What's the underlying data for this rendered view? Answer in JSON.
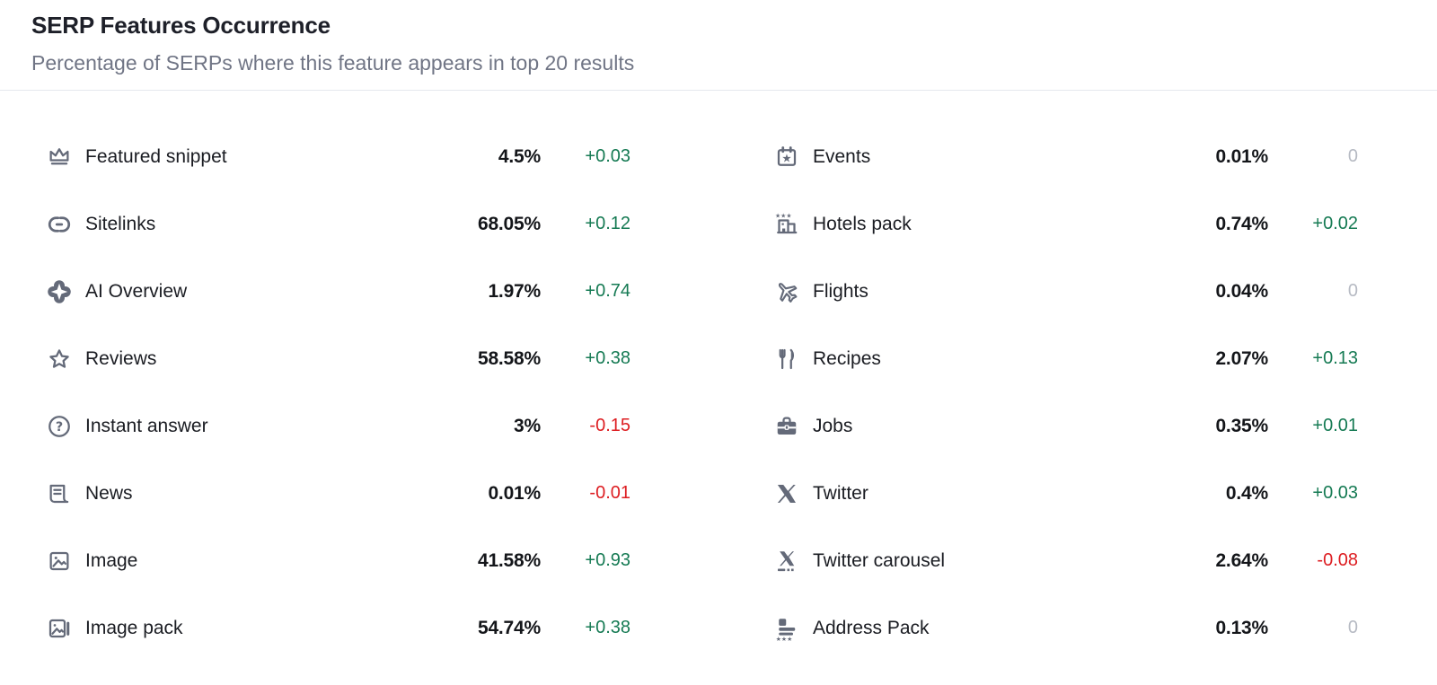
{
  "header": {
    "title": "SERP Features Occurrence",
    "subtitle": "Percentage of SERPs where this feature appears in top 20 results"
  },
  "colors": {
    "positive": "#157a53",
    "negative": "#dd1d21",
    "neutral": "#b6bac3",
    "icon": "#646a79",
    "label": "#1a1c22",
    "value": "#14161a",
    "subtitle": "#707585",
    "divider": "#e5e8ee"
  },
  "columns": [
    {
      "rows": [
        {
          "icon": "featured-snippet",
          "label": "Featured snippet",
          "value": "4.5%",
          "change": "+0.03",
          "trend": "up"
        },
        {
          "icon": "sitelinks",
          "label": "Sitelinks",
          "value": "68.05%",
          "change": "+0.12",
          "trend": "up"
        },
        {
          "icon": "ai-overview",
          "label": "AI Overview",
          "value": "1.97%",
          "change": "+0.74",
          "trend": "up"
        },
        {
          "icon": "reviews",
          "label": "Reviews",
          "value": "58.58%",
          "change": "+0.38",
          "trend": "up"
        },
        {
          "icon": "instant-answer",
          "label": "Instant answer",
          "value": "3%",
          "change": "-0.15",
          "trend": "down"
        },
        {
          "icon": "news",
          "label": "News",
          "value": "0.01%",
          "change": "-0.01",
          "trend": "down"
        },
        {
          "icon": "image",
          "label": "Image",
          "value": "41.58%",
          "change": "+0.93",
          "trend": "up"
        },
        {
          "icon": "image-pack",
          "label": "Image pack",
          "value": "54.74%",
          "change": "+0.38",
          "trend": "up"
        }
      ]
    },
    {
      "rows": [
        {
          "icon": "events",
          "label": "Events",
          "value": "0.01%",
          "change": "0",
          "trend": "flat"
        },
        {
          "icon": "hotels-pack",
          "label": "Hotels pack",
          "value": "0.74%",
          "change": "+0.02",
          "trend": "up"
        },
        {
          "icon": "flights",
          "label": "Flights",
          "value": "0.04%",
          "change": "0",
          "trend": "flat"
        },
        {
          "icon": "recipes",
          "label": "Recipes",
          "value": "2.07%",
          "change": "+0.13",
          "trend": "up"
        },
        {
          "icon": "jobs",
          "label": "Jobs",
          "value": "0.35%",
          "change": "+0.01",
          "trend": "up"
        },
        {
          "icon": "twitter",
          "label": "Twitter",
          "value": "0.4%",
          "change": "+0.03",
          "trend": "up"
        },
        {
          "icon": "twitter-carousel",
          "label": "Twitter carousel",
          "value": "2.64%",
          "change": "-0.08",
          "trend": "down"
        },
        {
          "icon": "address-pack",
          "label": "Address Pack",
          "value": "0.13%",
          "change": "0",
          "trend": "flat"
        }
      ]
    }
  ]
}
